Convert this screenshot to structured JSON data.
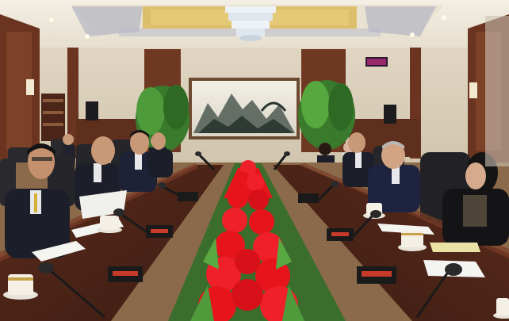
{
  "scene": {
    "colors": {
      "ceiling": "#efe9dd",
      "ceiling_gold": "#d9b85a",
      "wall": "#d8cdb8",
      "wood_dark": "#5a2e1c",
      "wood_mid": "#7a3f24",
      "table": "#4a2518",
      "table_top": "#6b3322",
      "flower_red": "#e8141c",
      "leaf_green": "#3f8a32",
      "suit": "#1c1e2a",
      "chair": "#2a2a2e",
      "floor": "#8a6a4a"
    },
    "icons": [
      "chandelier-icon",
      "clock-display-icon",
      "microphone-icon",
      "teacup-icon",
      "nameplate-icon",
      "plant-icon",
      "speaker-icon"
    ]
  }
}
